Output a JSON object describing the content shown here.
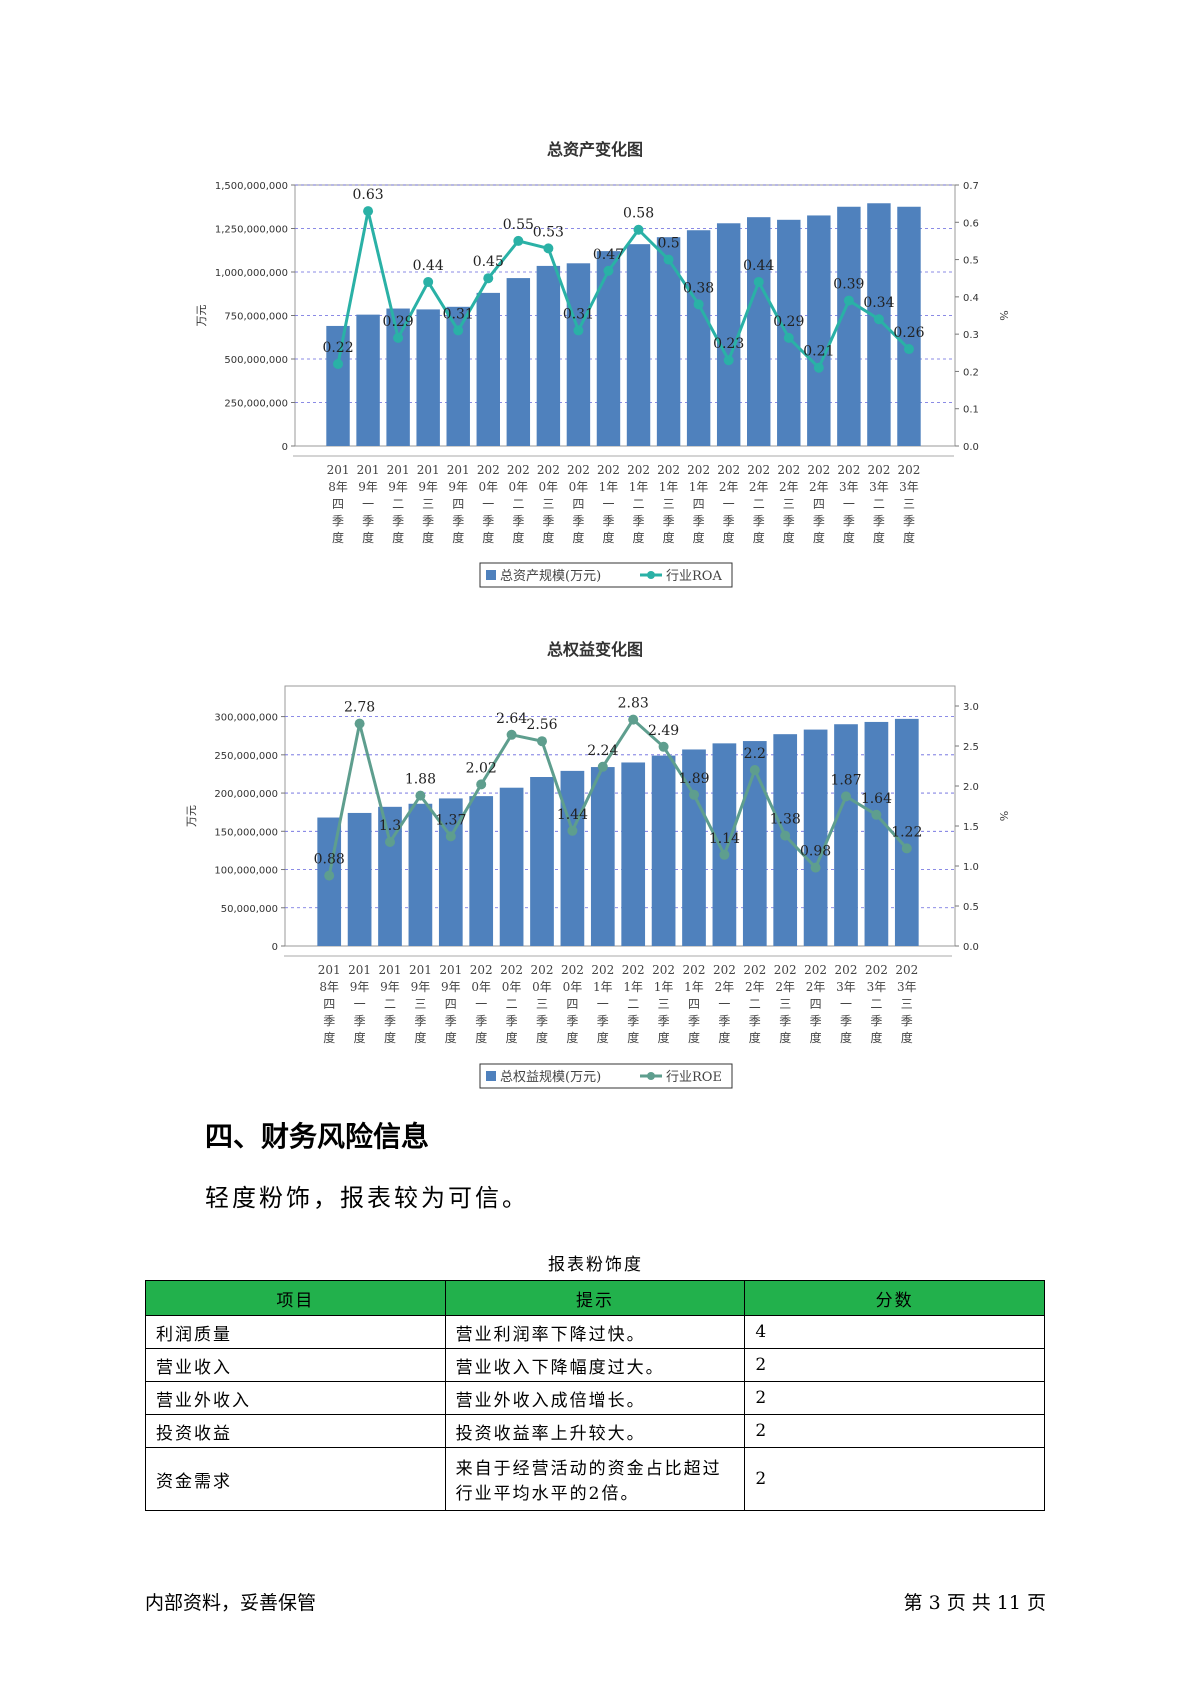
{
  "chart_data": [
    {
      "type": "bar+line",
      "title": "总资产变化图",
      "ylabel": "万元",
      "y2label": "%",
      "ylim": [
        0,
        1500000000
      ],
      "y2lim": [
        0,
        0.7
      ],
      "yticks": [
        "0",
        "250,000,000",
        "500,000,000",
        "750,000,000",
        "1,000,000,000",
        "1,250,000,000",
        "1,500,000,000"
      ],
      "y2ticks": [
        "0.0",
        "0.1",
        "0.2",
        "0.3",
        "0.4",
        "0.5",
        "0.6",
        "0.7"
      ],
      "categories": [
        "2018年四季度",
        "2019年一季度",
        "2019年二季度",
        "2019年三季度",
        "2019年四季度",
        "2020年一季度",
        "2020年二季度",
        "2020年三季度",
        "2020年四季度",
        "2021年一季度",
        "2021年二季度",
        "2021年三季度",
        "2021年四季度",
        "2022年一季度",
        "2022年二季度",
        "2022年三季度",
        "2022年四季度",
        "2023年一季度",
        "2023年二季度",
        "2023年三季度"
      ],
      "series": [
        {
          "name": "总资产规模(万元)",
          "kind": "bar",
          "color": "#4f81bd",
          "values": [
            690000000,
            755000000,
            790000000,
            785000000,
            800000000,
            880000000,
            965000000,
            1035000000,
            1050000000,
            1120000000,
            1160000000,
            1200000000,
            1240000000,
            1280000000,
            1315000000,
            1300000000,
            1325000000,
            1375000000,
            1395000000,
            1375000000
          ]
        },
        {
          "name": "行业ROA",
          "kind": "line",
          "color": "#2ab1a6",
          "values": [
            0.22,
            0.63,
            0.29,
            0.44,
            0.31,
            0.45,
            0.55,
            0.53,
            0.31,
            0.47,
            0.58,
            0.5,
            0.38,
            0.23,
            0.44,
            0.29,
            0.21,
            0.39,
            0.34,
            0.26
          ],
          "labels": [
            "0.22",
            "0.63",
            "0.29",
            "0.44",
            "0.31",
            "0.45",
            "0.55",
            "0.53",
            "0.31",
            "0.47",
            "0.58",
            "0.5",
            "0.38",
            "0.23",
            "0.44",
            "0.29",
            "0.21",
            "0.39",
            "0.34",
            "0.26"
          ]
        }
      ],
      "legend": "bottom",
      "grid": true
    },
    {
      "type": "bar+line",
      "title": "总权益变化图",
      "ylabel": "万元",
      "y2label": "%",
      "ylim": [
        0,
        340000000
      ],
      "y2lim": [
        0,
        3.25
      ],
      "yticks": [
        "0",
        "50,000,000",
        "100,000,000",
        "150,000,000",
        "200,000,000",
        "250,000,000",
        "300,000,000"
      ],
      "y2ticks": [
        "0.0",
        "0.5",
        "1.0",
        "1.5",
        "2.0",
        "2.5",
        "3.0"
      ],
      "categories": [
        "2018年四季度",
        "2019年一季度",
        "2019年二季度",
        "2019年三季度",
        "2019年四季度",
        "2020年一季度",
        "2020年二季度",
        "2020年三季度",
        "2020年四季度",
        "2021年一季度",
        "2021年二季度",
        "2021年三季度",
        "2021年四季度",
        "2022年一季度",
        "2022年二季度",
        "2022年三季度",
        "2022年四季度",
        "2023年一季度",
        "2023年二季度",
        "2023年三季度"
      ],
      "series": [
        {
          "name": "总权益规模(万元)",
          "kind": "bar",
          "color": "#4f81bd",
          "values": [
            168000000,
            174000000,
            182000000,
            186000000,
            193000000,
            196000000,
            207000000,
            221000000,
            229000000,
            234000000,
            240000000,
            249000000,
            257000000,
            265000000,
            268000000,
            277000000,
            283000000,
            290000000,
            293000000,
            297000000
          ]
        },
        {
          "name": "行业ROE",
          "kind": "line",
          "color": "#5e9e8e",
          "values": [
            0.88,
            2.78,
            1.3,
            1.88,
            1.37,
            2.02,
            2.64,
            2.56,
            1.44,
            2.24,
            2.83,
            2.49,
            1.89,
            1.14,
            2.2,
            1.38,
            0.98,
            1.87,
            1.64,
            1.22
          ],
          "labels": [
            "0.88",
            "2.78",
            "1.3",
            "1.88",
            "1.37",
            "2.02",
            "2.64",
            "2.56",
            "1.44",
            "2.24",
            "2.83",
            "2.49",
            "1.89",
            "1.14",
            "2.2",
            "1.38",
            "0.98",
            "1.87",
            "1.64",
            "1.22"
          ]
        }
      ],
      "legend": "bottom",
      "grid": true
    }
  ],
  "section": {
    "heading": "四、财务风险信息",
    "summary": "轻度粉饰，报表较为可信。"
  },
  "table": {
    "caption": "报表粉饰度",
    "header_color": "#22b14c",
    "headers": [
      "项目",
      "提示",
      "分数"
    ],
    "rows": [
      [
        "利润质量",
        "营业利润率下降过快。",
        "4"
      ],
      [
        "营业收入",
        "营业收入下降幅度过大。",
        "2"
      ],
      [
        "营业外收入",
        "营业外收入成倍增长。",
        "2"
      ],
      [
        "投资收益",
        "投资收益率上升较大。",
        "2"
      ],
      [
        "资金需求",
        "来自于经营活动的资金占比超过行业平均水平的2倍。",
        "2"
      ]
    ]
  },
  "footer": {
    "left": "内部资料，妥善保管",
    "right": "第 3 页   共 11 页"
  }
}
